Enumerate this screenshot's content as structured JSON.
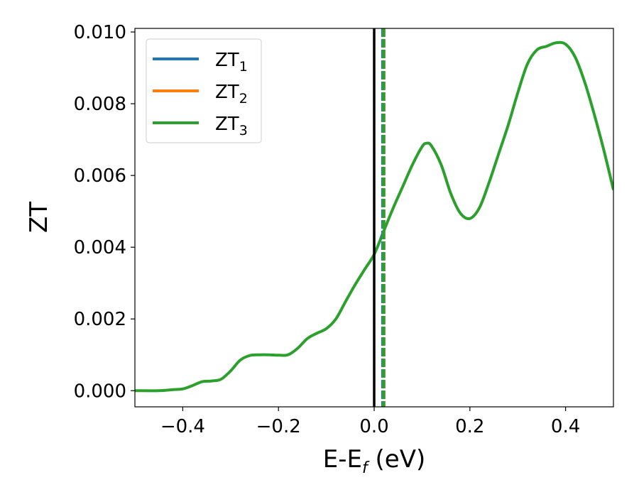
{
  "chart_data": {
    "type": "line",
    "xlabel": {
      "main": "E-E",
      "sub": "f",
      "unit": " (eV)"
    },
    "ylabel": "ZT",
    "xlim": [
      -0.5,
      0.5
    ],
    "ylim": [
      -0.00045,
      0.0101
    ],
    "x_ticks": [
      -0.4,
      -0.2,
      0.0,
      0.2,
      0.4
    ],
    "x_tick_labels": [
      "−0.4",
      "−0.2",
      "0.0",
      "0.2",
      "0.4"
    ],
    "y_ticks": [
      0.0,
      0.002,
      0.004,
      0.006,
      0.008,
      0.01
    ],
    "y_tick_labels": [
      "0.000",
      "0.002",
      "0.004",
      "0.006",
      "0.008",
      "0.010"
    ],
    "grid": false,
    "legend_position": "top-left",
    "series": [
      {
        "name": "ZT",
        "sub": "1",
        "color": "#1f77b4"
      },
      {
        "name": "ZT",
        "sub": "2",
        "color": "#ff7f0e"
      },
      {
        "name": "ZT",
        "sub": "3",
        "color": "#2ca02c",
        "x": [
          -0.5,
          -0.45,
          -0.42,
          -0.4,
          -0.38,
          -0.36,
          -0.34,
          -0.32,
          -0.3,
          -0.28,
          -0.26,
          -0.24,
          -0.22,
          -0.2,
          -0.18,
          -0.16,
          -0.14,
          -0.12,
          -0.1,
          -0.08,
          -0.06,
          -0.04,
          -0.02,
          0.0,
          0.02,
          0.04,
          0.06,
          0.08,
          0.1,
          0.11,
          0.12,
          0.14,
          0.16,
          0.18,
          0.2,
          0.22,
          0.24,
          0.26,
          0.28,
          0.3,
          0.32,
          0.34,
          0.36,
          0.38,
          0.4,
          0.42,
          0.44,
          0.46,
          0.48,
          0.5
        ],
        "y": [
          0.0,
          0.0,
          3e-05,
          5e-05,
          0.00014,
          0.00025,
          0.00027,
          0.00032,
          0.00055,
          0.00085,
          0.00098,
          0.001,
          0.001,
          0.00099,
          0.001,
          0.00118,
          0.00145,
          0.0016,
          0.00173,
          0.002,
          0.00248,
          0.00295,
          0.00338,
          0.0038,
          0.00445,
          0.0051,
          0.0057,
          0.0063,
          0.0068,
          0.0069,
          0.00682,
          0.0063,
          0.0055,
          0.00495,
          0.0048,
          0.0051,
          0.0058,
          0.0066,
          0.0074,
          0.0083,
          0.0091,
          0.0095,
          0.0096,
          0.0097,
          0.00966,
          0.0093,
          0.0086,
          0.0077,
          0.0067,
          0.0056
        ]
      }
    ],
    "vertical_lines": [
      {
        "x": 0.0,
        "color": "#000000",
        "style": "solid"
      },
      {
        "x": 0.018,
        "color": "#1f77b4",
        "style": "dashed"
      },
      {
        "x": 0.02,
        "color": "#ff7f0e",
        "style": "dashed"
      },
      {
        "x": 0.02,
        "color": "#2ca02c",
        "style": "dashed"
      }
    ]
  }
}
